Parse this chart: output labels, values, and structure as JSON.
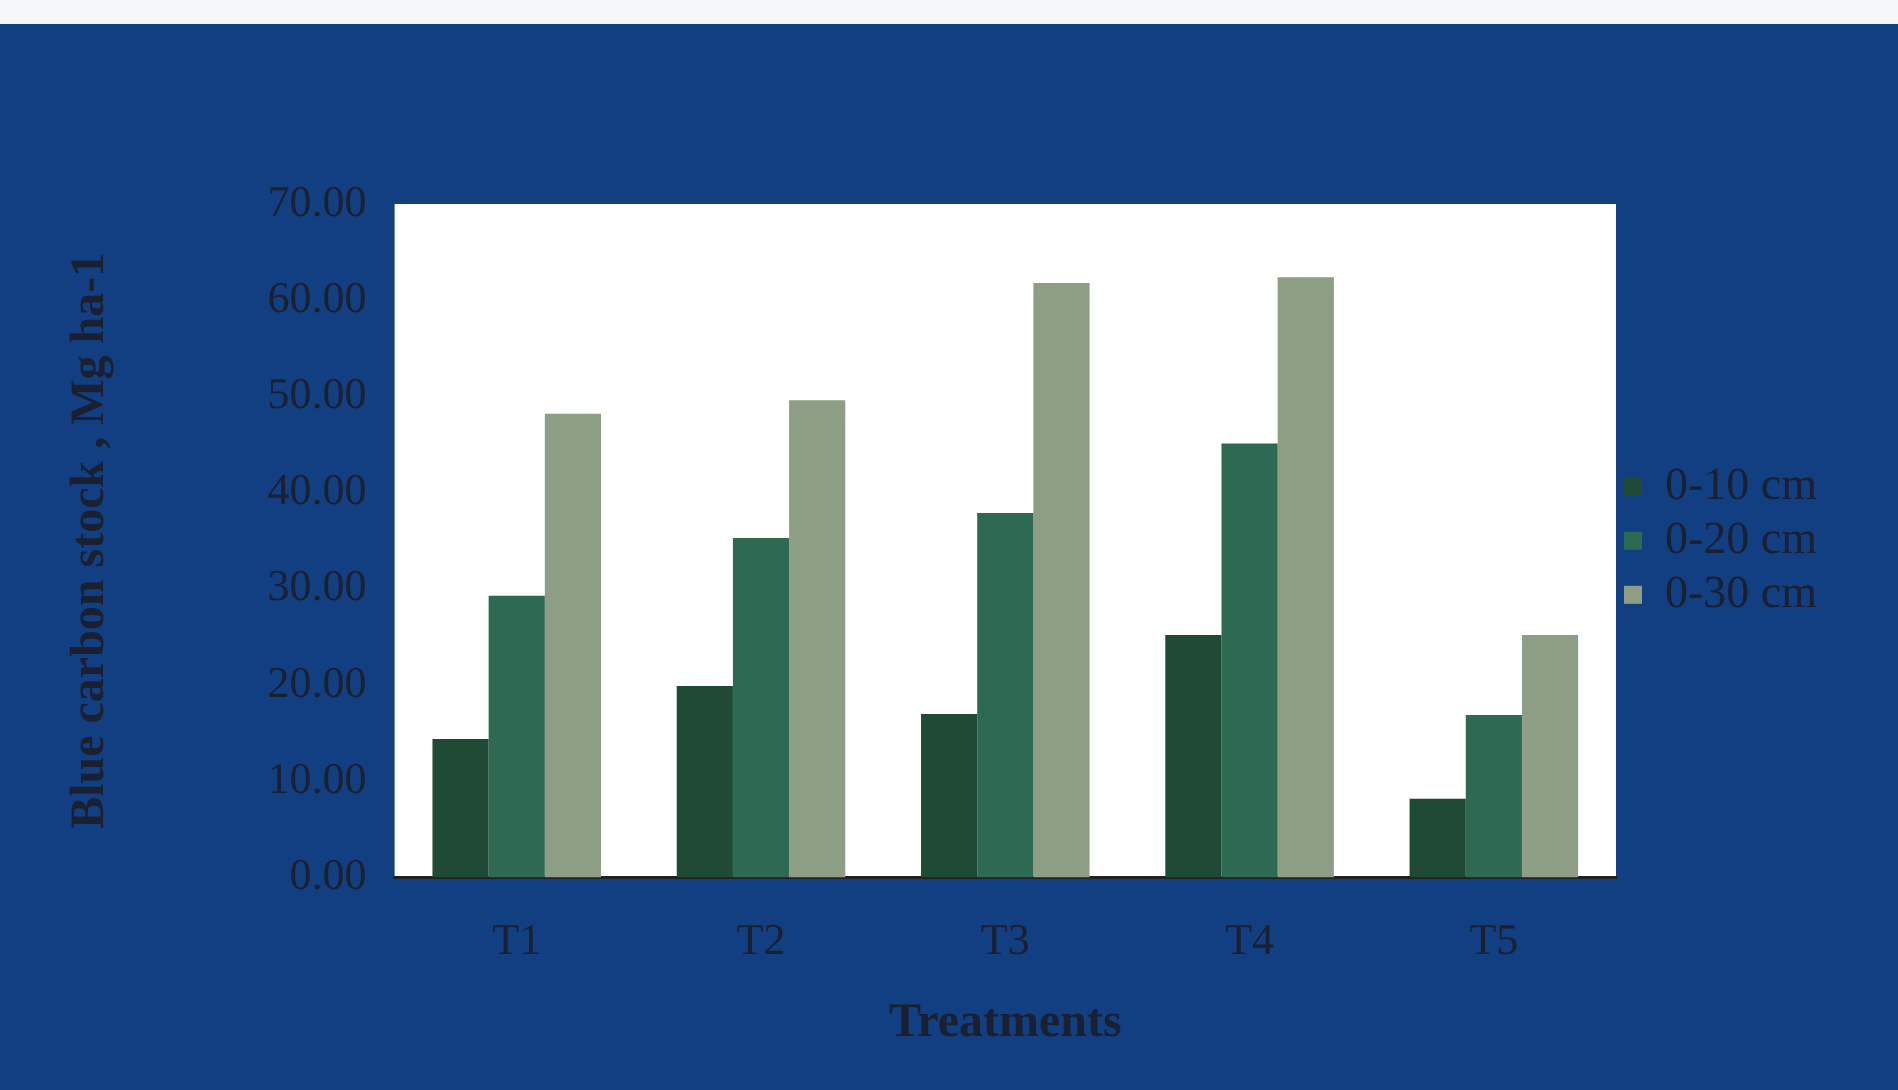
{
  "chart_data": {
    "type": "bar",
    "xlabel": "Treatments",
    "ylabel": "Blue carbon stock , Mg ha-1",
    "categories": [
      "T1",
      "T2",
      "T3",
      "T4",
      "T5"
    ],
    "series": [
      {
        "name": "0-10 cm",
        "color": "#1e4a36",
        "values": [
          14.4,
          19.9,
          17.0,
          25.2,
          8.2
        ]
      },
      {
        "name": "0-20 cm",
        "color": "#2e6a52",
        "values": [
          29.3,
          35.3,
          37.9,
          45.1,
          16.9
        ]
      },
      {
        "name": "0-30 cm",
        "color": "#8e9e84",
        "values": [
          48.2,
          49.6,
          61.8,
          62.4,
          25.2
        ]
      }
    ],
    "ylim": [
      0,
      70
    ],
    "yticks": [
      {
        "value": 0,
        "label": "0.00"
      },
      {
        "value": 10,
        "label": "10.00"
      },
      {
        "value": 20,
        "label": "20.00"
      },
      {
        "value": 30,
        "label": "30.00"
      },
      {
        "value": 40,
        "label": "40.00"
      },
      {
        "value": 50,
        "label": "50.00"
      },
      {
        "value": 60,
        "label": "60.00"
      },
      {
        "value": 70,
        "label": "70.00"
      }
    ],
    "legend": "right"
  }
}
